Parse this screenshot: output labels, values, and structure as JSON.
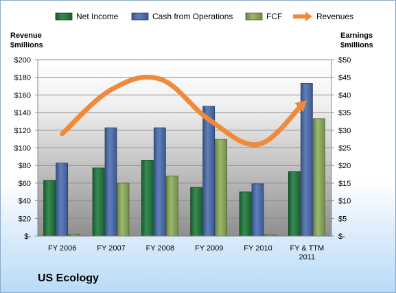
{
  "company_label": "US Ecology",
  "chart_data": {
    "type": "bar",
    "categories": [
      "FY 2006",
      "FY 2007",
      "FY 2008",
      "FY 2009",
      "FY 2010",
      "FY & TTM 2011"
    ],
    "category_lines": [
      [
        "FY 2006"
      ],
      [
        "FY 2007"
      ],
      [
        "FY 2008"
      ],
      [
        "FY 2009"
      ],
      [
        "FY 2010"
      ],
      [
        "FY & TTM",
        "2011"
      ]
    ],
    "series": [
      {
        "name": "Net Income",
        "axis": "right",
        "color": "#1e7a3c",
        "values": [
          15.8,
          19.3,
          21.5,
          13.8,
          12.5,
          18.3
        ]
      },
      {
        "name": "Cash from Operations",
        "axis": "right",
        "color": "#4a6fb3",
        "values": [
          20.7,
          30.7,
          30.7,
          36.8,
          14.8,
          43.3
        ]
      },
      {
        "name": "FCF",
        "axis": "right",
        "color": "#8fb05a",
        "values": [
          0.5,
          15.0,
          17.0,
          27.4,
          0.4,
          33.3
        ]
      },
      {
        "name": "Revenues",
        "type": "line",
        "axis": "left",
        "color": "#f08a3a",
        "values": [
          116,
          166,
          178,
          132,
          104,
          154
        ]
      }
    ],
    "left_axis": {
      "title_lines": [
        "Revenue",
        "$millions"
      ],
      "range": [
        0,
        200
      ],
      "ticks": [
        "$-",
        "$20",
        "$40",
        "$60",
        "$80",
        "$100",
        "$120",
        "$140",
        "$160",
        "$180",
        "$200"
      ]
    },
    "right_axis": {
      "title_lines": [
        "Earnings",
        "$millions"
      ],
      "range": [
        0,
        50
      ],
      "ticks": [
        "$-",
        "$5",
        "$10",
        "$15",
        "$20",
        "$25",
        "$30",
        "$35",
        "$40",
        "$45",
        "$50"
      ]
    },
    "grid": true,
    "legend_position": "top"
  }
}
